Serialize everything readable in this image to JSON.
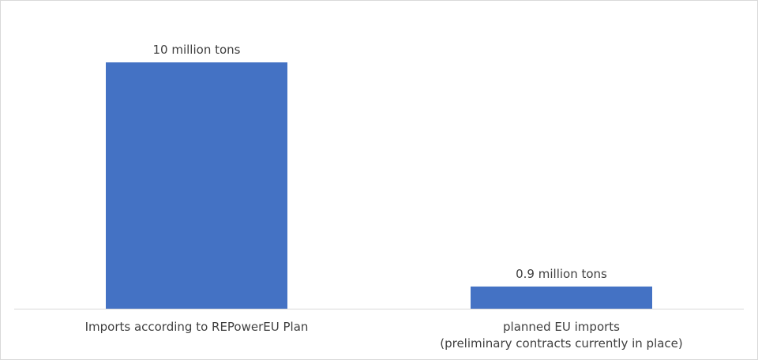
{
  "chart_data": {
    "type": "bar",
    "categories": [
      [
        "Imports according to REPowerEU Plan"
      ],
      [
        "planned EU imports",
        "(preliminary contracts currently in place)"
      ]
    ],
    "values": [
      10,
      0.9
    ],
    "data_labels": [
      "10 million tons",
      "0.9 million tons"
    ],
    "title": "",
    "xlabel": "",
    "ylabel": "",
    "ylim": [
      0,
      10
    ],
    "grid": false,
    "legend": "none",
    "bar_color": "#4472C4"
  }
}
